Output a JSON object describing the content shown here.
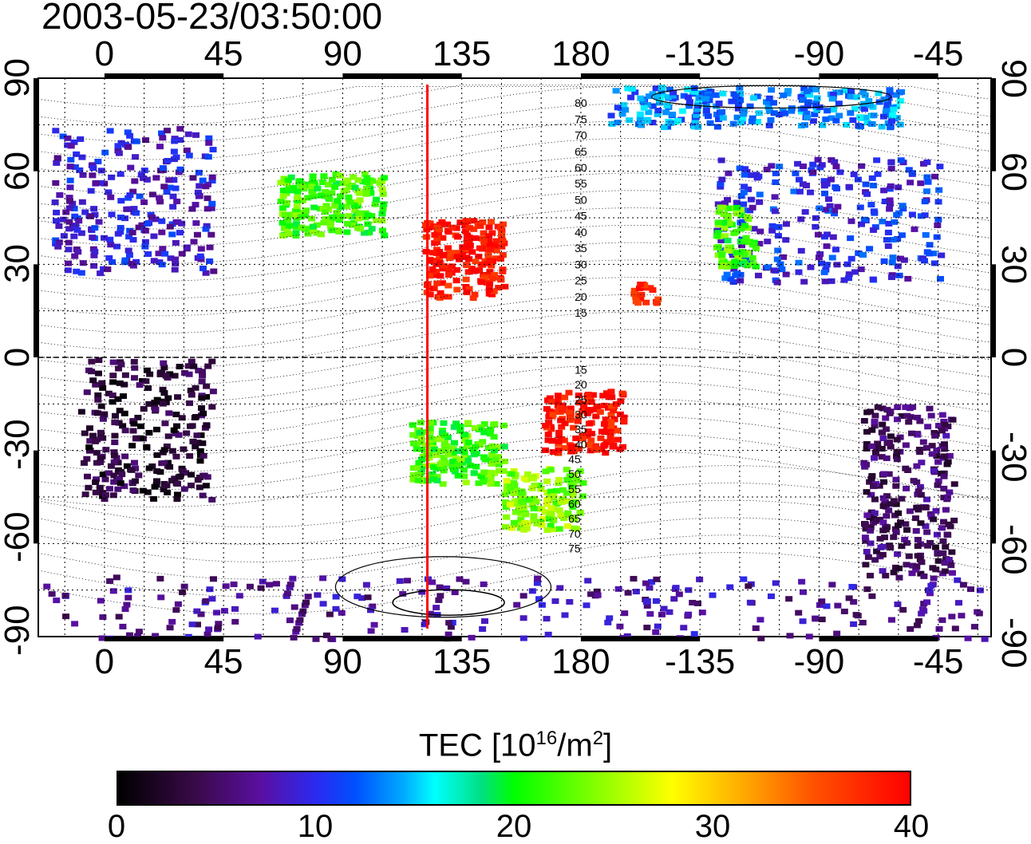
{
  "title": "2003-05-23/03:50:00",
  "map": {
    "lon_ticks": [
      "0",
      "45",
      "90",
      "135",
      "180",
      "-135",
      "-90",
      "-45"
    ],
    "lon_values": [
      0,
      45,
      90,
      135,
      180,
      225,
      270,
      315
    ],
    "lat_ticks": [
      "90",
      "60",
      "30",
      "0",
      "-30",
      "-60",
      "-90"
    ],
    "lat_values": [
      90,
      60,
      30,
      0,
      -30,
      -60,
      -90
    ],
    "lon_range": [
      -25,
      335
    ],
    "lat_range": [
      -90,
      90
    ],
    "terminator_line_lon": 122,
    "terminator_color": "#ff0000",
    "contour_labels_north": [
      "80",
      "75",
      "70",
      "65",
      "60",
      "55",
      "50",
      "45",
      "40",
      "35",
      "30",
      "25",
      "20",
      "15"
    ],
    "contour_labels_south": [
      "15",
      "20",
      "25",
      "30",
      "35",
      "40",
      "45",
      "50",
      "55",
      "60",
      "65",
      "70",
      "75"
    ]
  },
  "colorbar": {
    "label_main": "TEC  [10",
    "label_sup1": "16",
    "label_mid": "/m",
    "label_sup2": "2",
    "label_end": "]",
    "ticks": [
      "0",
      "10",
      "20",
      "30",
      "40"
    ],
    "tick_values": [
      0,
      10,
      20,
      30,
      40
    ],
    "range": [
      0,
      40
    ]
  },
  "tec_regions": [
    {
      "name": "europe",
      "lon": [
        -20,
        40
      ],
      "lat": [
        28,
        75
      ],
      "tec": 9
    },
    {
      "name": "north-america",
      "lon": [
        230,
        315
      ],
      "lat": [
        25,
        65
      ],
      "tec": 10
    },
    {
      "name": "north-america-west",
      "lon": [
        230,
        245
      ],
      "lat": [
        30,
        50
      ],
      "tec": 22
    },
    {
      "name": "japan-east-asia",
      "lon": [
        120,
        150
      ],
      "lat": [
        20,
        45
      ],
      "tec": 39
    },
    {
      "name": "central-asia",
      "lon": [
        65,
        105
      ],
      "lat": [
        40,
        60
      ],
      "tec": 22
    },
    {
      "name": "pacific-south",
      "lon": [
        165,
        195
      ],
      "lat": [
        -30,
        -10
      ],
      "tec": 39
    },
    {
      "name": "australia",
      "lon": [
        115,
        150
      ],
      "lat": [
        -40,
        -20
      ],
      "tec": 22
    },
    {
      "name": "new-zealand",
      "lon": [
        150,
        180
      ],
      "lat": [
        -55,
        -35
      ],
      "tec": 24
    },
    {
      "name": "south-america",
      "lon": [
        285,
        320
      ],
      "lat": [
        -70,
        -15
      ],
      "tec": 5
    },
    {
      "name": "africa",
      "lon": [
        -10,
        40
      ],
      "lat": [
        -45,
        0
      ],
      "tec": 3
    },
    {
      "name": "antarctica",
      "lon": [
        -25,
        335
      ],
      "lat": [
        -90,
        -70
      ],
      "tec": 7
    },
    {
      "name": "hawaii",
      "lon": [
        198,
        208
      ],
      "lat": [
        18,
        25
      ],
      "tec": 38
    },
    {
      "name": "arctic-north",
      "lon": [
        190,
        300
      ],
      "lat": [
        75,
        88
      ],
      "tec": 13
    }
  ]
}
